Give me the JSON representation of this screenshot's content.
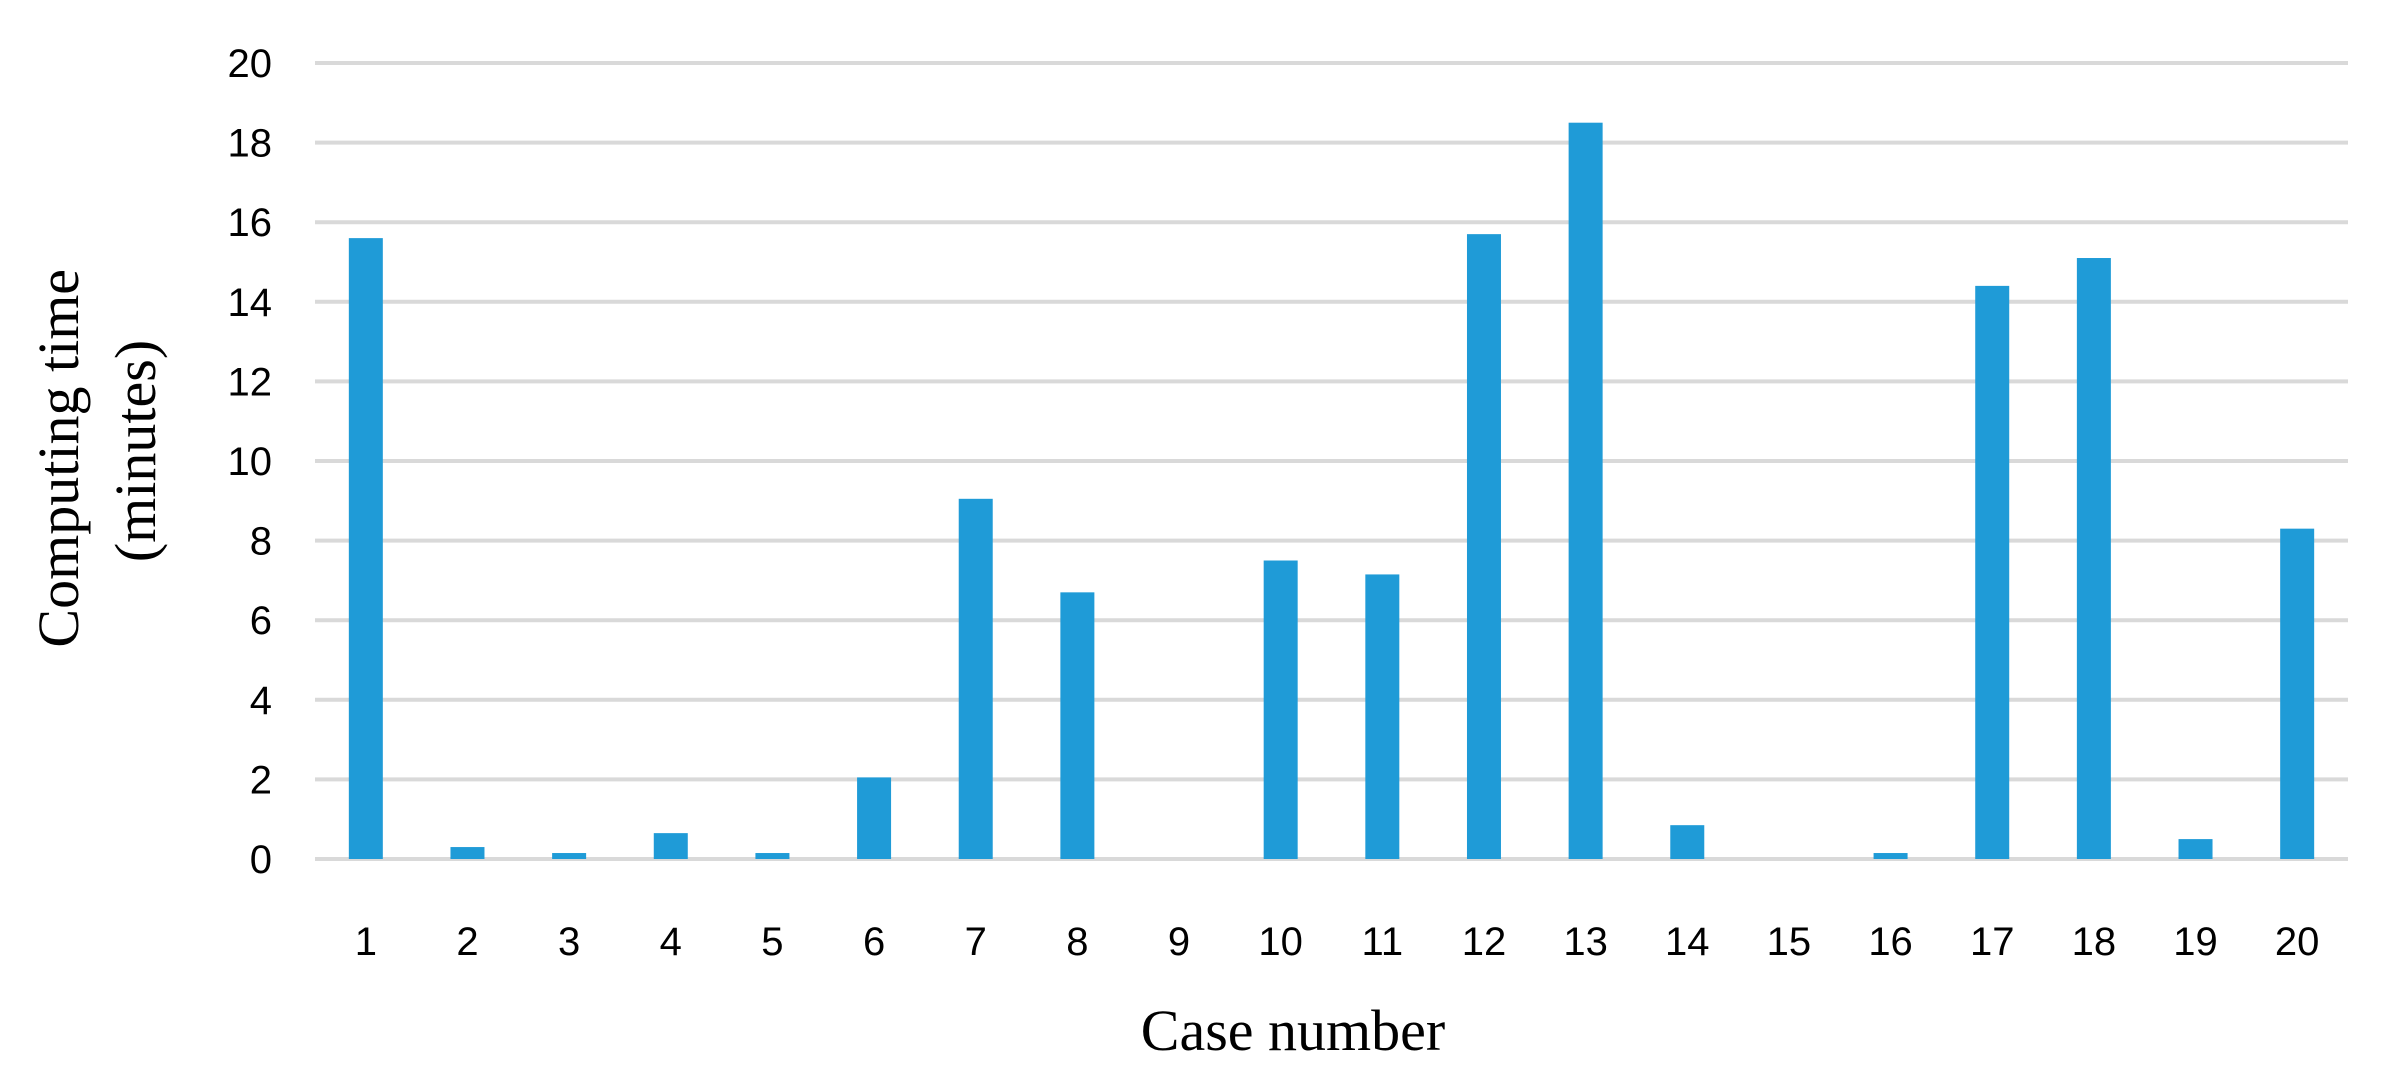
{
  "chart_data": {
    "type": "bar",
    "title": "",
    "xlabel": "Case number",
    "ylabel_lines": [
      "Computing time",
      "(minutes)"
    ],
    "categories": [
      "1",
      "2",
      "3",
      "4",
      "5",
      "6",
      "7",
      "8",
      "9",
      "10",
      "11",
      "12",
      "13",
      "14",
      "15",
      "16",
      "17",
      "18",
      "19",
      "20"
    ],
    "values": [
      15.6,
      0.3,
      0.15,
      0.65,
      0.15,
      2.05,
      9.05,
      6.7,
      0,
      7.5,
      7.15,
      15.7,
      18.5,
      0.85,
      0,
      0.15,
      14.4,
      15.1,
      0.5,
      8.3
    ],
    "ylim": [
      0,
      20
    ],
    "yticks": [
      "0",
      "2",
      "4",
      "6",
      "8",
      "10",
      "12",
      "14",
      "16",
      "18",
      "20"
    ],
    "grid": true,
    "bar_color": "#1f9bd7",
    "grid_color": "#d9d9d9"
  }
}
